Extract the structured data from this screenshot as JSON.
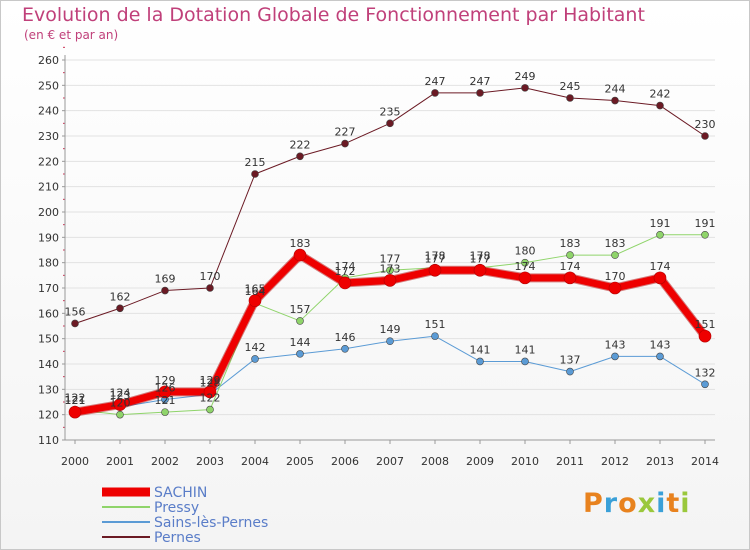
{
  "header": {
    "title": "Evolution de la Dotation Globale de Fonctionnement par Habitant",
    "subtitle": "(en € et par an)"
  },
  "logo": {
    "text": "Proxiti",
    "colors": [
      "#e8821e",
      "#3aa0d8",
      "#e8821e",
      "#9ac83c",
      "#3aa0d8",
      "#e8821e",
      "#9ac83c"
    ]
  },
  "chart_data": {
    "type": "line",
    "title": "Evolution de la Dotation Globale de Fonctionnement par Habitant",
    "subtitle": "(en € et par an)",
    "xlabel": "",
    "ylabel": "",
    "ylim": [
      110,
      260
    ],
    "y_ticks": [
      110,
      120,
      130,
      140,
      150,
      160,
      170,
      180,
      190,
      200,
      210,
      220,
      230,
      240,
      250,
      260
    ],
    "x": [
      "2000",
      "2001",
      "2002",
      "2003",
      "2004",
      "2005",
      "2006",
      "2007",
      "2008",
      "2009",
      "2010",
      "2011",
      "2012",
      "2013",
      "2014"
    ],
    "grid": "horizontal",
    "legend": "bottom-left",
    "series": [
      {
        "name": "Pernes",
        "color": "#6b1a24",
        "width": 1,
        "values": [
          156,
          162,
          169,
          170,
          215,
          222,
          227,
          235,
          247,
          247,
          249,
          245,
          244,
          242,
          230
        ]
      },
      {
        "name": "Sains-lès-Pernes",
        "color": "#5b9bd5",
        "width": 1,
        "values": [
          121,
          123,
          126,
          128,
          142,
          144,
          146,
          149,
          151,
          141,
          141,
          137,
          143,
          143,
          132
        ]
      },
      {
        "name": "Pressy",
        "color": "#8fd46a",
        "width": 1,
        "values": [
          122,
          120,
          121,
          122,
          164,
          157,
          174,
          177,
          178,
          178,
          180,
          183,
          183,
          191,
          191
        ]
      },
      {
        "name": "SACHIN",
        "color": "#ee0000",
        "width": 7,
        "values": [
          121,
          124,
          129,
          129,
          165,
          183,
          172,
          173,
          177,
          177,
          174,
          174,
          170,
          174,
          151
        ]
      }
    ]
  }
}
